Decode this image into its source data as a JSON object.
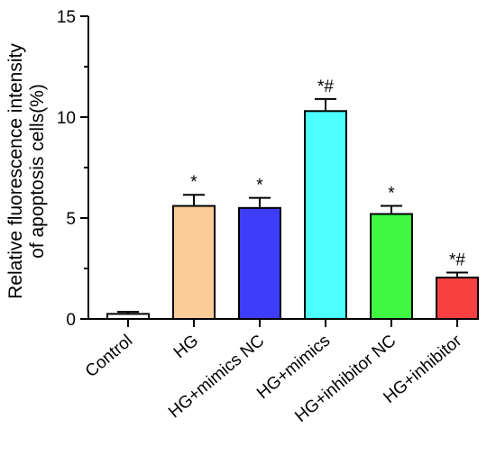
{
  "chart_data": {
    "type": "bar",
    "ylabel_line1": "Relative fluorescence intensity",
    "ylabel_line2": "of apoptosis cells(%)",
    "ylim": [
      0,
      15
    ],
    "yticks": [
      0,
      5,
      10,
      15
    ],
    "categories": [
      "Control",
      "HG",
      "HG+mimics NC",
      "HG+mimics",
      "HG+inhibitor NC",
      "HG+inhibitor"
    ],
    "values": [
      0.25,
      5.6,
      5.5,
      10.3,
      5.2,
      2.05
    ],
    "errors": [
      0.1,
      0.55,
      0.5,
      0.6,
      0.4,
      0.25
    ],
    "significance": [
      "",
      "*",
      "*",
      "*#",
      "*",
      "*#"
    ],
    "colors": [
      "#ffffff",
      "#fbcb9a",
      "#3d3dfa",
      "#4dfefe",
      "#40f640",
      "#f94040"
    ],
    "grid": false,
    "legend": "none"
  }
}
